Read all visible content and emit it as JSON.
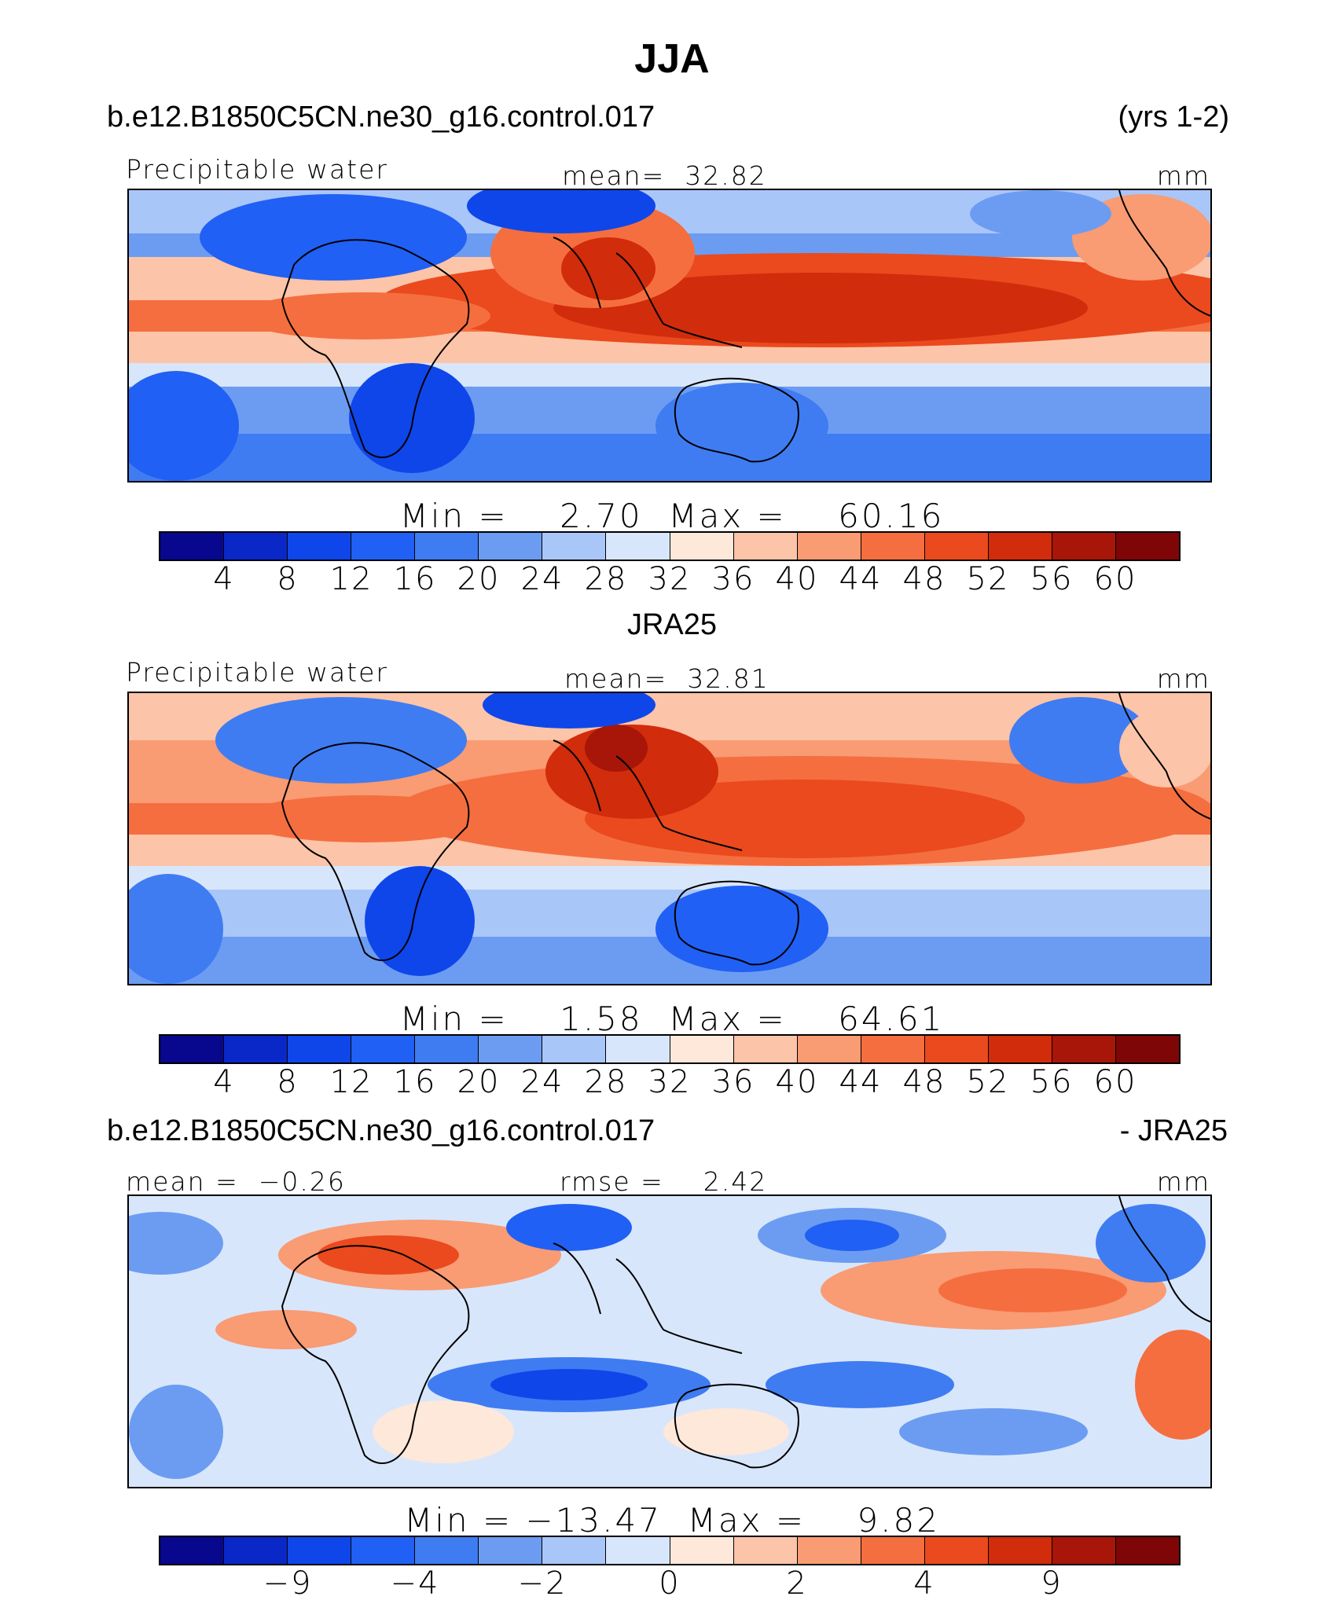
{
  "title": "JJA",
  "header": {
    "case": "b.e12.B1850C5CN.ne30_g16.control.017",
    "years": "(yrs 1-2)"
  },
  "colors": [
    "#08088e",
    "#0a28c8",
    "#0f46ea",
    "#2060f4",
    "#3f7cf2",
    "#6c9cf2",
    "#a9c6f8",
    "#d8e6fb",
    "#fde8da",
    "#fcc4a8",
    "#f99b73",
    "#f56e3f",
    "#ea4a1e",
    "#d12c0b",
    "#a71608",
    "#7e0606"
  ],
  "chart_data": [
    {
      "type": "heatmap",
      "panel": "model",
      "variable": "Precipitable water",
      "mean_label": "mean=",
      "mean": "32.82",
      "units": "mm",
      "min_label": "Min =",
      "min": "2.70",
      "max_label": "Max =",
      "max": "60.16",
      "levels": [
        "4",
        "8",
        "12",
        "16",
        "20",
        "24",
        "28",
        "32",
        "36",
        "40",
        "44",
        "48",
        "52",
        "56",
        "60"
      ]
    },
    {
      "type": "heatmap",
      "panel": "obs",
      "title": "JRA25",
      "variable": "Precipitable water",
      "mean_label": "mean=",
      "mean": "32.81",
      "units": "mm",
      "min_label": "Min =",
      "min": "1.58",
      "max_label": "Max =",
      "max": "64.61",
      "levels": [
        "4",
        "8",
        "12",
        "16",
        "20",
        "24",
        "28",
        "32",
        "36",
        "40",
        "44",
        "48",
        "52",
        "56",
        "60"
      ]
    },
    {
      "type": "heatmap",
      "panel": "difference",
      "left_title": "b.e12.B1850C5CN.ne30_g16.control.017",
      "right_title": "- JRA25",
      "mean_label": "mean =",
      "mean": "−0.26",
      "rmse_label": "rmse =",
      "rmse": "2.42",
      "units": "mm",
      "min_label": "Min =",
      "min": "−13.47",
      "max_label": "Max =",
      "max": "9.82",
      "levels": [
        "",
        "−9",
        "",
        "−4",
        "",
        "−2",
        "",
        "0",
        "",
        "2",
        "",
        "4",
        "",
        "9",
        ""
      ]
    }
  ]
}
